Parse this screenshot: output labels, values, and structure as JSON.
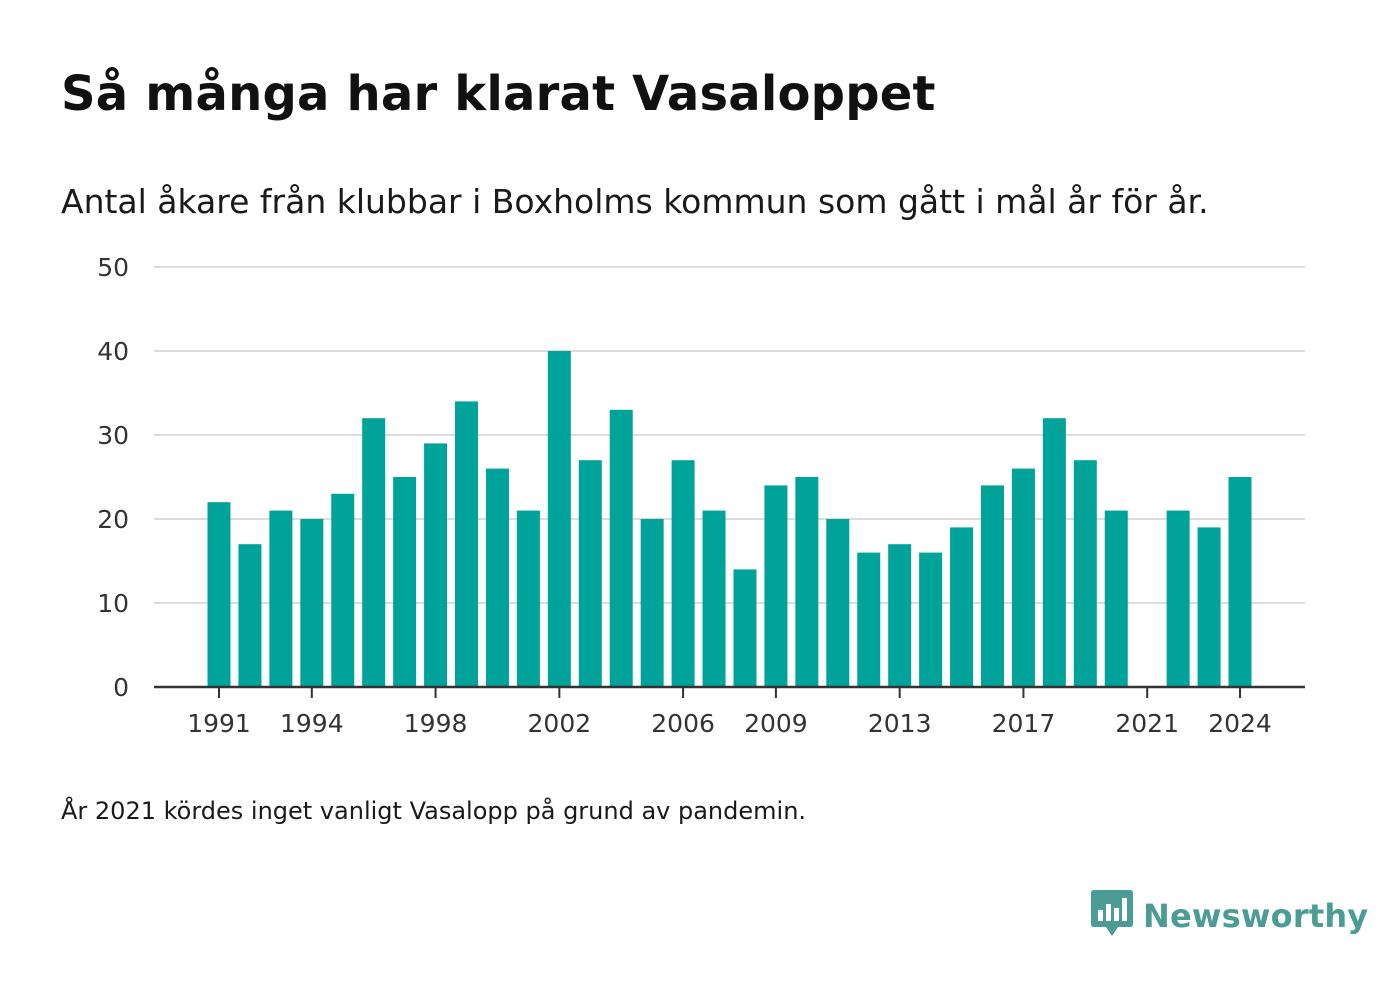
{
  "header": {
    "title": "Så många har klarat Vasaloppet",
    "subtitle": "Antal åkare från klubbar i Boxholms kommun som gått i mål år för år."
  },
  "footnote": "År 2021 kördes inget vanligt Vasalopp på grund av pandemin.",
  "brand": {
    "name": "Newsworthy",
    "icon": "newsworthy-logo-icon",
    "color": "#4a9c94"
  },
  "chart_data": {
    "type": "bar",
    "title": "Så många har klarat Vasaloppet",
    "subtitle": "Antal åkare från klubbar i Boxholms kommun som gått i mål år för år.",
    "xlabel": "",
    "ylabel": "",
    "ylim": [
      0,
      50
    ],
    "yticks": [
      0,
      10,
      20,
      30,
      40,
      50
    ],
    "xticks": [
      1991,
      1994,
      1998,
      2002,
      2006,
      2009,
      2013,
      2017,
      2021,
      2024
    ],
    "grid": true,
    "bar_color": "#00a39a",
    "categories": [
      1991,
      1992,
      1993,
      1994,
      1995,
      1996,
      1997,
      1998,
      1999,
      2000,
      2001,
      2002,
      2003,
      2004,
      2005,
      2006,
      2007,
      2008,
      2009,
      2010,
      2011,
      2012,
      2013,
      2014,
      2015,
      2016,
      2017,
      2018,
      2019,
      2020,
      2021,
      2022,
      2023,
      2024
    ],
    "values": [
      22,
      17,
      21,
      20,
      23,
      32,
      25,
      29,
      34,
      26,
      21,
      40,
      27,
      33,
      20,
      27,
      21,
      14,
      24,
      25,
      20,
      16,
      17,
      16,
      19,
      24,
      26,
      32,
      27,
      21,
      null,
      21,
      19,
      25
    ]
  }
}
